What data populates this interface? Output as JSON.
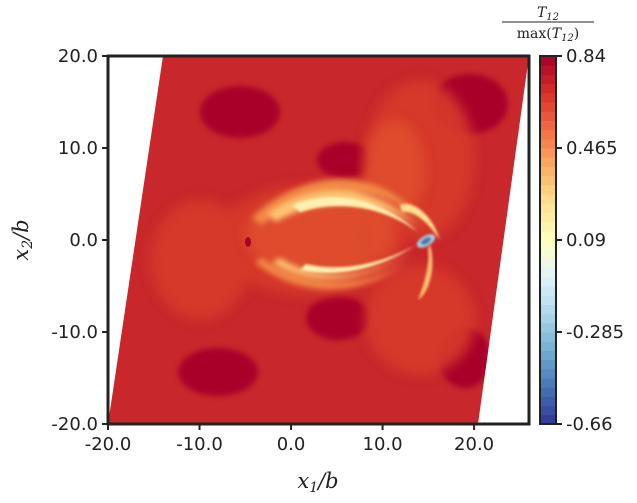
{
  "chart_data": {
    "type": "heatmap",
    "title": "",
    "xlabel": "x1/b",
    "ylabel": "x2/b",
    "xlim": [
      -20.0,
      26.0
    ],
    "ylim": [
      -20.0,
      20.0
    ],
    "x_ticks": [
      "-20.0",
      "-10.0",
      "0.0",
      "10.0",
      "20.0"
    ],
    "y_ticks": [
      "20.0",
      "10.0",
      "0.0",
      "-10.0",
      "-20.0"
    ],
    "x_tick_values": [
      -20,
      -10,
      0,
      10,
      20
    ],
    "y_tick_values": [
      20,
      10,
      0,
      -10,
      -20
    ],
    "domain": "sheared parallelogram cell with corners (-20,-20), (20,-20), (26,20), (-14,20)",
    "colorbar": {
      "label_numerator": "T12",
      "label_denominator": "max(T12)",
      "colormap": "RdYlBu_r",
      "range": [
        -0.66,
        0.84
      ],
      "ticks": [
        "0.84",
        "0.465",
        "0.09",
        "-0.285",
        "-0.66"
      ],
      "tick_values": [
        0.84,
        0.465,
        0.09,
        -0.285,
        -0.66
      ],
      "levels": 40
    },
    "features": [
      {
        "kind": "peak-negative",
        "x": 14.5,
        "y": 0.0,
        "value": -0.66
      },
      {
        "kind": "arc-low-stress",
        "center": [
          6,
          0
        ],
        "description": "horseshoe shaped low-stress band opening to the left"
      }
    ],
    "colors": {
      "background_field": "#c6262a",
      "high": "#a50026",
      "low": "#313695"
    }
  }
}
